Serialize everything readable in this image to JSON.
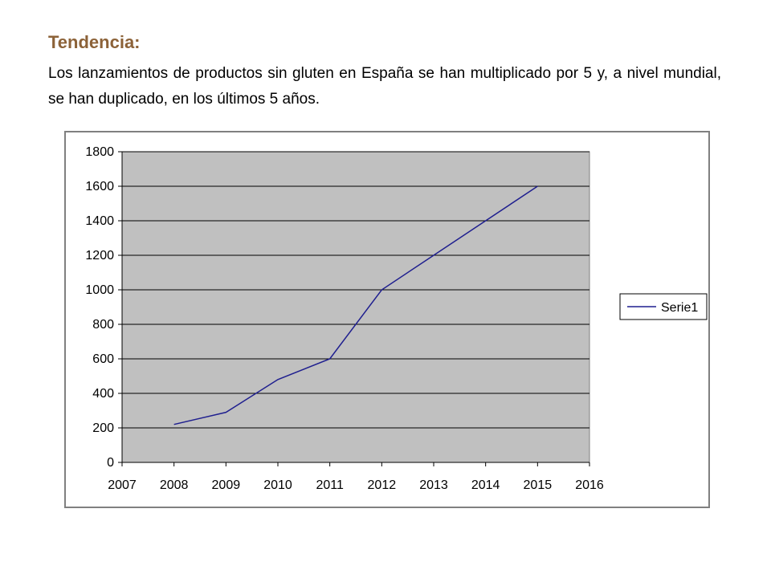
{
  "heading": "Tendencia:",
  "paragraph": "Los lanzamientos de productos sin gluten en España se han multiplicado por 5 y, a nivel mundial, se han duplicado, en los últimos 5 años.",
  "colors": {
    "heading": "#8c6238",
    "plot_background": "#c0c0c0",
    "series": "#1f1f8f",
    "grid": "#000000"
  },
  "chart_data": {
    "type": "line",
    "title": "",
    "xlabel": "",
    "ylabel": "",
    "xlim": [
      2007,
      2016
    ],
    "ylim": [
      0,
      1800
    ],
    "x_ticks": [
      "2007",
      "2008",
      "2009",
      "2010",
      "2011",
      "2012",
      "2013",
      "2014",
      "2015",
      "2016"
    ],
    "y_ticks": [
      "0",
      "200",
      "400",
      "600",
      "800",
      "1000",
      "1200",
      "1400",
      "1600",
      "1800"
    ],
    "grid": true,
    "legend_position": "right",
    "series": [
      {
        "name": "Serie1",
        "x": [
          2008,
          2009,
          2010,
          2011,
          2012,
          2013,
          2014,
          2015
        ],
        "y": [
          220,
          290,
          480,
          600,
          1000,
          1200,
          1400,
          1600
        ]
      }
    ]
  }
}
